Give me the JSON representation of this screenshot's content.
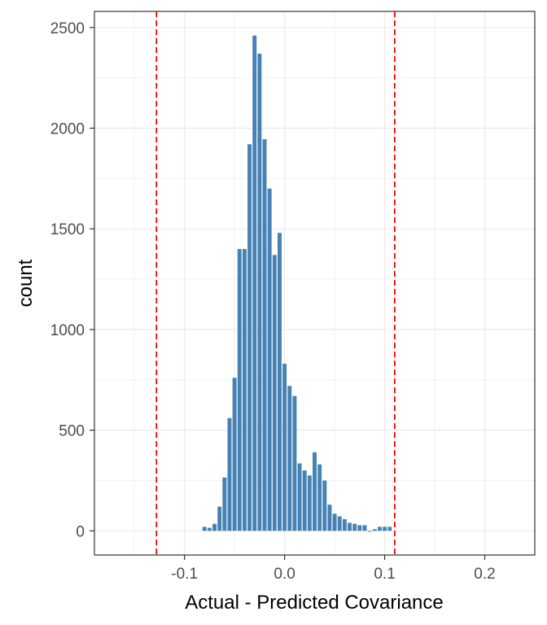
{
  "chart_data": {
    "type": "bar",
    "xlabel": "Actual - Predicted Covariance",
    "ylabel": "count",
    "xlim": [
      -0.19,
      0.25
    ],
    "ylim": [
      -120,
      2580
    ],
    "grid": true,
    "bar_color": "#4682b4",
    "vline_color": "#ff0000",
    "vlines": [
      -0.128,
      0.11
    ],
    "bin_width": 0.005,
    "x_ticks": [
      -0.1,
      0.0,
      0.1,
      0.2
    ],
    "x_tick_labels": [
      "-0.1",
      "0.0",
      "0.1",
      "0.2"
    ],
    "y_ticks": [
      0,
      500,
      1000,
      1500,
      2000,
      2500
    ],
    "y_tick_labels": [
      "0",
      "500",
      "1000",
      "1500",
      "2000",
      "2500"
    ],
    "bins": [
      {
        "x": -0.08,
        "count": 20
      },
      {
        "x": -0.075,
        "count": 15
      },
      {
        "x": -0.07,
        "count": 35
      },
      {
        "x": -0.065,
        "count": 120
      },
      {
        "x": -0.06,
        "count": 265
      },
      {
        "x": -0.055,
        "count": 560
      },
      {
        "x": -0.05,
        "count": 760
      },
      {
        "x": -0.045,
        "count": 1400
      },
      {
        "x": -0.04,
        "count": 1400
      },
      {
        "x": -0.035,
        "count": 1920
      },
      {
        "x": -0.03,
        "count": 2460
      },
      {
        "x": -0.025,
        "count": 2370
      },
      {
        "x": -0.02,
        "count": 1945
      },
      {
        "x": -0.015,
        "count": 1700
      },
      {
        "x": -0.01,
        "count": 1370
      },
      {
        "x": -0.005,
        "count": 1480
      },
      {
        "x": 0.0,
        "count": 830
      },
      {
        "x": 0.005,
        "count": 720
      },
      {
        "x": 0.01,
        "count": 670
      },
      {
        "x": 0.015,
        "count": 335
      },
      {
        "x": 0.02,
        "count": 300
      },
      {
        "x": 0.025,
        "count": 275
      },
      {
        "x": 0.03,
        "count": 390
      },
      {
        "x": 0.035,
        "count": 330
      },
      {
        "x": 0.04,
        "count": 250
      },
      {
        "x": 0.045,
        "count": 130
      },
      {
        "x": 0.05,
        "count": 85
      },
      {
        "x": 0.055,
        "count": 72
      },
      {
        "x": 0.06,
        "count": 58
      },
      {
        "x": 0.065,
        "count": 40
      },
      {
        "x": 0.07,
        "count": 35
      },
      {
        "x": 0.075,
        "count": 28
      },
      {
        "x": 0.08,
        "count": 28
      },
      {
        "x": 0.085,
        "count": 0
      },
      {
        "x": 0.09,
        "count": 8
      },
      {
        "x": 0.095,
        "count": 20
      },
      {
        "x": 0.1,
        "count": 20
      },
      {
        "x": 0.105,
        "count": 20
      }
    ]
  }
}
